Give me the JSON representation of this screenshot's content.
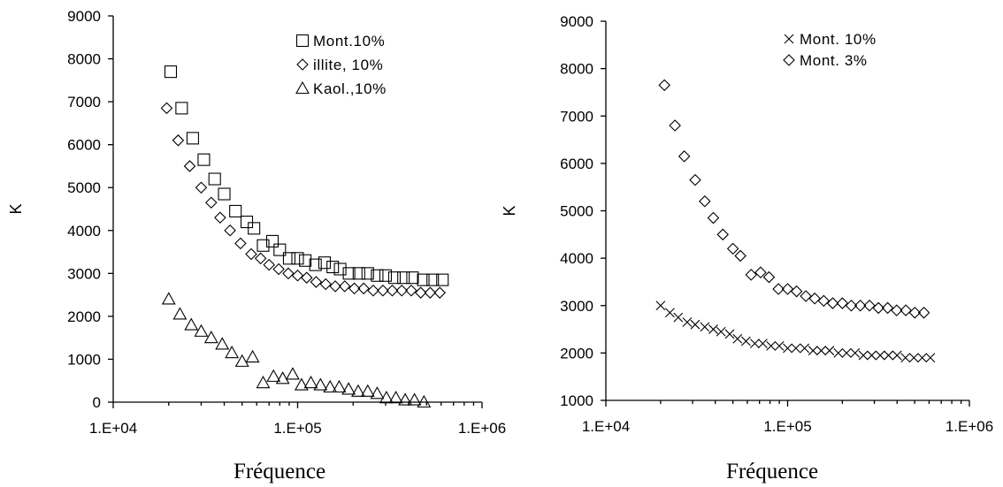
{
  "chart_data": [
    {
      "type": "scatter",
      "title": "",
      "xlabel": "Fréquence",
      "ylabel": "K",
      "xscale": "log",
      "xlim": [
        10000,
        1000000
      ],
      "ylim": [
        0,
        9000
      ],
      "xticks": [
        "1.E+04",
        "1.E+05",
        "1.E+06"
      ],
      "yticks": [
        "0",
        "1000",
        "2000",
        "3000",
        "4000",
        "5000",
        "6000",
        "7000",
        "8000",
        "9000"
      ],
      "legend_position": "top-right",
      "series": [
        {
          "name": "Mont.10%",
          "marker": "square",
          "x": [
            20500,
            23500,
            27000,
            31000,
            35500,
            40000,
            46000,
            53000,
            58000,
            65000,
            73000,
            80000,
            90000,
            100000,
            110000,
            125000,
            140000,
            155000,
            170000,
            190000,
            215000,
            240000,
            270000,
            300000,
            335000,
            375000,
            420000,
            480000,
            540000,
            610000
          ],
          "y": [
            7700,
            6850,
            6150,
            5650,
            5200,
            4850,
            4450,
            4200,
            4050,
            3650,
            3750,
            3550,
            3350,
            3350,
            3300,
            3200,
            3250,
            3150,
            3100,
            3000,
            3000,
            3000,
            2950,
            2950,
            2900,
            2900,
            2900,
            2850,
            2850,
            2850
          ]
        },
        {
          "name": "illite, 10%",
          "marker": "diamond",
          "x": [
            19500,
            22500,
            26000,
            30000,
            34000,
            38000,
            43000,
            49000,
            56000,
            63000,
            70000,
            79000,
            89000,
            100000,
            112000,
            126000,
            142000,
            160000,
            180000,
            203000,
            228000,
            257000,
            290000,
            326000,
            367000,
            413000,
            465000,
            523000,
            590000
          ],
          "y": [
            6850,
            6100,
            5500,
            5000,
            4650,
            4300,
            4000,
            3700,
            3450,
            3350,
            3200,
            3100,
            3000,
            2950,
            2900,
            2800,
            2750,
            2700,
            2700,
            2650,
            2650,
            2600,
            2600,
            2600,
            2600,
            2600,
            2550,
            2550,
            2550
          ]
        },
        {
          "name": "Kaol.,10%",
          "marker": "triangle",
          "x": [
            20000,
            23000,
            26500,
            30000,
            34000,
            39000,
            44000,
            50000,
            57000,
            65000,
            74000,
            83000,
            94000,
            105000,
            118000,
            133000,
            150000,
            168000,
            189000,
            213000,
            240000,
            270000,
            303000,
            341000,
            383000,
            430000,
            484000
          ],
          "y": [
            2400,
            2050,
            1800,
            1650,
            1500,
            1350,
            1150,
            950,
            1050,
            450,
            600,
            550,
            650,
            400,
            450,
            400,
            350,
            350,
            300,
            250,
            250,
            200,
            100,
            100,
            50,
            50,
            0
          ]
        }
      ]
    },
    {
      "type": "scatter",
      "title": "",
      "xlabel": "Fréquence",
      "ylabel": "K",
      "xscale": "log",
      "xlim": [
        10000,
        1000000
      ],
      "ylim": [
        1000,
        9000
      ],
      "xticks": [
        "1.E+04",
        "1.E+05",
        "1.E+06"
      ],
      "yticks": [
        "1000",
        "2000",
        "3000",
        "4000",
        "5000",
        "6000",
        "7000",
        "8000",
        "9000"
      ],
      "legend_position": "top-right",
      "series": [
        {
          "name": "Mont. 10%",
          "marker": "x",
          "x": [
            20000,
            22500,
            25000,
            28000,
            31000,
            35000,
            39000,
            43000,
            48000,
            53000,
            59000,
            66000,
            73000,
            81000,
            90000,
            100000,
            111000,
            124000,
            138000,
            153000,
            170000,
            190000,
            211000,
            235000,
            261000,
            290000,
            323000,
            359000,
            400000,
            445000,
            495000,
            550000,
            610000
          ],
          "y": [
            3000,
            2850,
            2750,
            2650,
            2600,
            2550,
            2500,
            2450,
            2400,
            2300,
            2250,
            2200,
            2200,
            2150,
            2150,
            2100,
            2100,
            2100,
            2050,
            2050,
            2050,
            2000,
            2000,
            2000,
            1950,
            1950,
            1950,
            1950,
            1950,
            1900,
            1900,
            1900,
            1900
          ]
        },
        {
          "name": "Mont. 3%",
          "marker": "diamond",
          "x": [
            21000,
            24000,
            27000,
            31000,
            35000,
            39000,
            44000,
            50000,
            55000,
            63000,
            71000,
            79000,
            89000,
            100000,
            112000,
            126000,
            141000,
            158000,
            177000,
            200000,
            224000,
            251000,
            282000,
            316000,
            355000,
            398000,
            447000,
            501000,
            562000
          ],
          "y": [
            7650,
            6800,
            6150,
            5650,
            5200,
            4850,
            4500,
            4200,
            4050,
            3650,
            3700,
            3600,
            3350,
            3350,
            3300,
            3200,
            3150,
            3100,
            3050,
            3050,
            3000,
            3000,
            3000,
            2950,
            2950,
            2900,
            2900,
            2850,
            2850
          ]
        }
      ]
    }
  ]
}
